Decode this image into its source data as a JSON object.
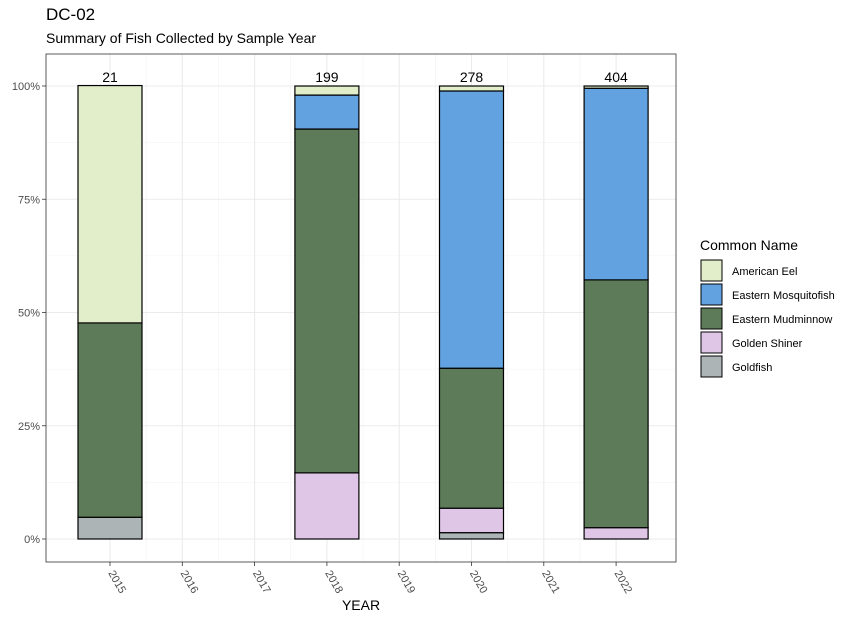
{
  "chart_data": {
    "type": "bar",
    "stacked": "percent",
    "title": "DC-02",
    "subtitle": "Summary of Fish Collected by Sample Year",
    "xlabel": "YEAR",
    "ylabel": "",
    "x_ticks": [
      "2015",
      "2016",
      "2017",
      "2018",
      "2019",
      "2020",
      "2021",
      "2022"
    ],
    "y_ticks": [
      {
        "value": 0,
        "label": "0%"
      },
      {
        "value": 25,
        "label": "25%"
      },
      {
        "value": 50,
        "label": "50%"
      },
      {
        "value": 75,
        "label": "75%"
      },
      {
        "value": 100,
        "label": "100%"
      }
    ],
    "ylim": [
      0,
      100
    ],
    "legend_title": "Common Name",
    "legend_position": "right",
    "categories": [
      "2015",
      "2018",
      "2020",
      "2022"
    ],
    "totals": [
      21,
      199,
      278,
      404
    ],
    "total_labels": [
      "21",
      "199",
      "278",
      "404"
    ],
    "series": [
      {
        "name": "American Eel",
        "color": "#e2edc9",
        "values": [
          52.4,
          2.0,
          1.1,
          0.5
        ]
      },
      {
        "name": "Eastern Mosquitofish",
        "color": "#62a2e0",
        "values": [
          0.0,
          7.5,
          61.2,
          42.3
        ]
      },
      {
        "name": "Eastern Mudminnow",
        "color": "#5d7b58",
        "values": [
          42.9,
          75.9,
          30.9,
          54.7
        ]
      },
      {
        "name": "Golden Shiner",
        "color": "#e0c6e6",
        "values": [
          0.0,
          14.6,
          5.4,
          2.5
        ]
      },
      {
        "name": "Goldfish",
        "color": "#adb4b5",
        "values": [
          4.8,
          0.0,
          1.4,
          0.0
        ]
      }
    ]
  }
}
